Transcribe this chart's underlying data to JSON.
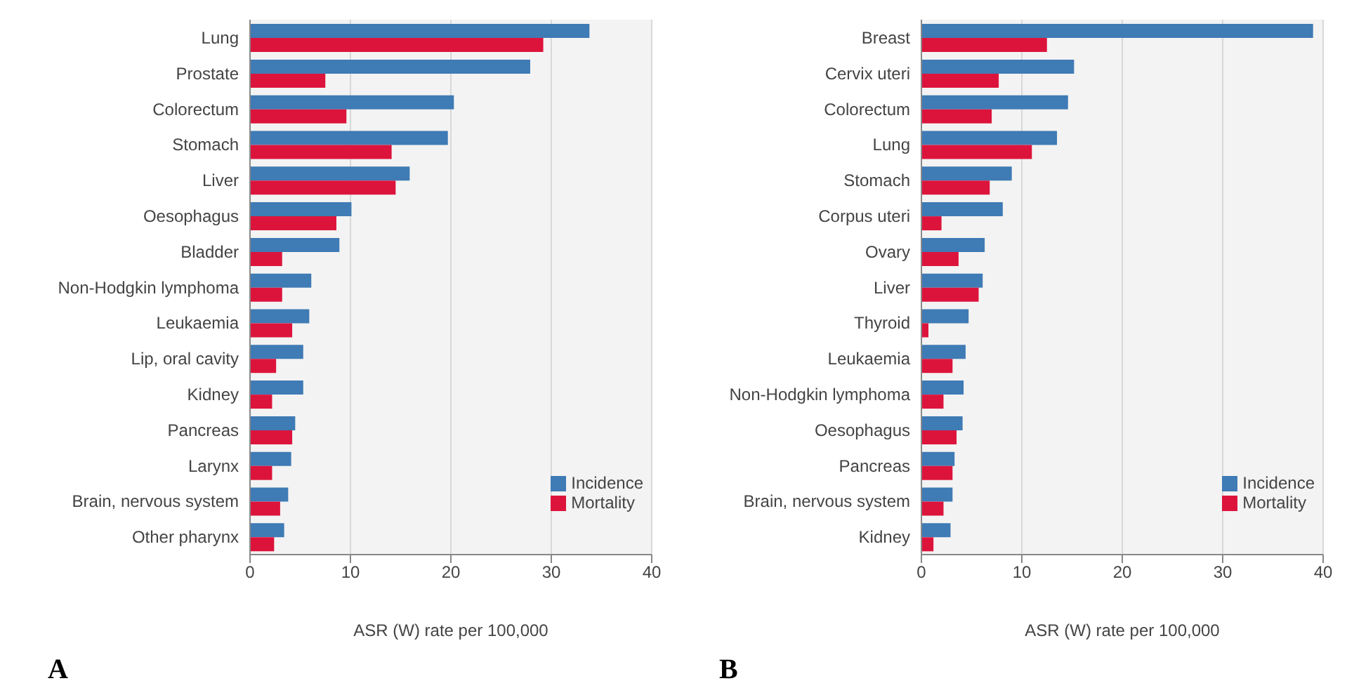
{
  "chart_data": [
    {
      "type": "bar",
      "orientation": "horizontal",
      "categories": [
        "Lung",
        "Prostate",
        "Colorectum",
        "Stomach",
        "Liver",
        "Oesophagus",
        "Bladder",
        "Non-Hodgkin lymphoma",
        "Leukaemia",
        "Lip, oral cavity",
        "Kidney",
        "Pancreas",
        "Larynx",
        "Brain, nervous system",
        "Other pharynx"
      ],
      "series": [
        {
          "name": "Incidence",
          "color": "#3f7bb5",
          "values": [
            33.8,
            27.9,
            20.3,
            19.7,
            15.9,
            10.1,
            8.9,
            6.1,
            5.9,
            5.3,
            5.3,
            4.5,
            4.1,
            3.8,
            3.4
          ]
        },
        {
          "name": "Mortality",
          "color": "#dc143c",
          "values": [
            29.2,
            7.5,
            9.6,
            14.1,
            14.5,
            8.6,
            3.2,
            3.2,
            4.2,
            2.6,
            2.2,
            4.2,
            2.2,
            3.0,
            2.4
          ]
        }
      ],
      "xlim": [
        0,
        40
      ],
      "xticks": [
        0,
        10,
        20,
        30,
        40
      ],
      "xlabel": "ASR (W) rate per 100,000",
      "grid": "x",
      "legend": "bottom right",
      "annotations": [
        "A"
      ]
    },
    {
      "type": "bar",
      "orientation": "horizontal",
      "categories": [
        "Breast",
        "Cervix uteri",
        "Colorectum",
        "Lung",
        "Stomach",
        "Corpus uteri",
        "Ovary",
        "Liver",
        "Thyroid",
        "Leukaemia",
        "Non-Hodgkin lymphoma",
        "Oesophagus",
        "Pancreas",
        "Brain, nervous system",
        "Kidney"
      ],
      "series": [
        {
          "name": "Incidence",
          "color": "#3f7bb5",
          "values": [
            39.0,
            15.2,
            14.6,
            13.5,
            9.0,
            8.1,
            6.3,
            6.1,
            4.7,
            4.4,
            4.2,
            4.1,
            3.3,
            3.1,
            2.9
          ]
        },
        {
          "name": "Mortality",
          "color": "#dc143c",
          "values": [
            12.5,
            7.7,
            7.0,
            11.0,
            6.8,
            2.0,
            3.7,
            5.7,
            0.7,
            3.1,
            2.2,
            3.5,
            3.1,
            2.2,
            1.2
          ]
        }
      ],
      "xlim": [
        0,
        40
      ],
      "xticks": [
        0,
        10,
        20,
        30,
        40
      ],
      "xlabel": "ASR (W) rate per 100,000",
      "grid": "x",
      "legend": "bottom right",
      "annotations": [
        "B"
      ]
    }
  ]
}
